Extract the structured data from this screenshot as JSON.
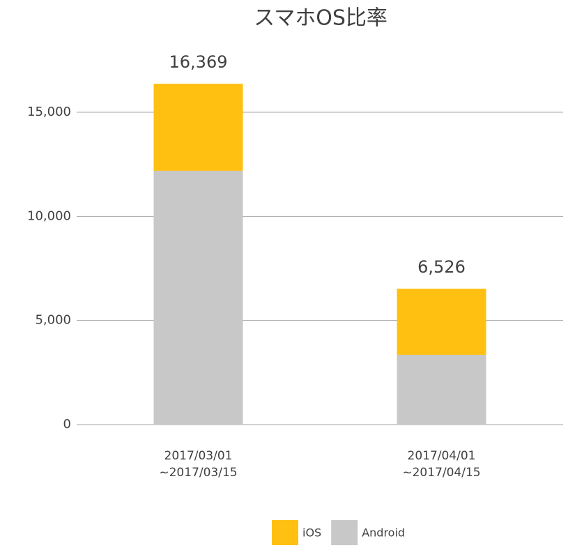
{
  "chart_data": {
    "type": "stacked-bar",
    "title": "スマホOS比率",
    "categories": [
      [
        "2017/03/01",
        "~2017/03/15"
      ],
      [
        "2017/04/01",
        "~2017/04/15"
      ]
    ],
    "series": [
      {
        "name": "iOS",
        "color": "#ffc012",
        "values": [
          4179,
          3176
        ]
      },
      {
        "name": "Android",
        "color": "#c8c8c8",
        "values": [
          12190,
          3350
        ]
      }
    ],
    "totals": [
      16369,
      6526
    ],
    "total_labels": [
      "16,369",
      "6,526"
    ],
    "ylim": [
      0,
      16369
    ],
    "yticks": [
      0,
      {
        "value": 5000,
        "label": "5,000"
      },
      {
        "value": 10000,
        "label": "10,000"
      },
      {
        "value": 15000,
        "label": "15,000"
      }
    ],
    "grid": true,
    "legend": "bottom"
  }
}
